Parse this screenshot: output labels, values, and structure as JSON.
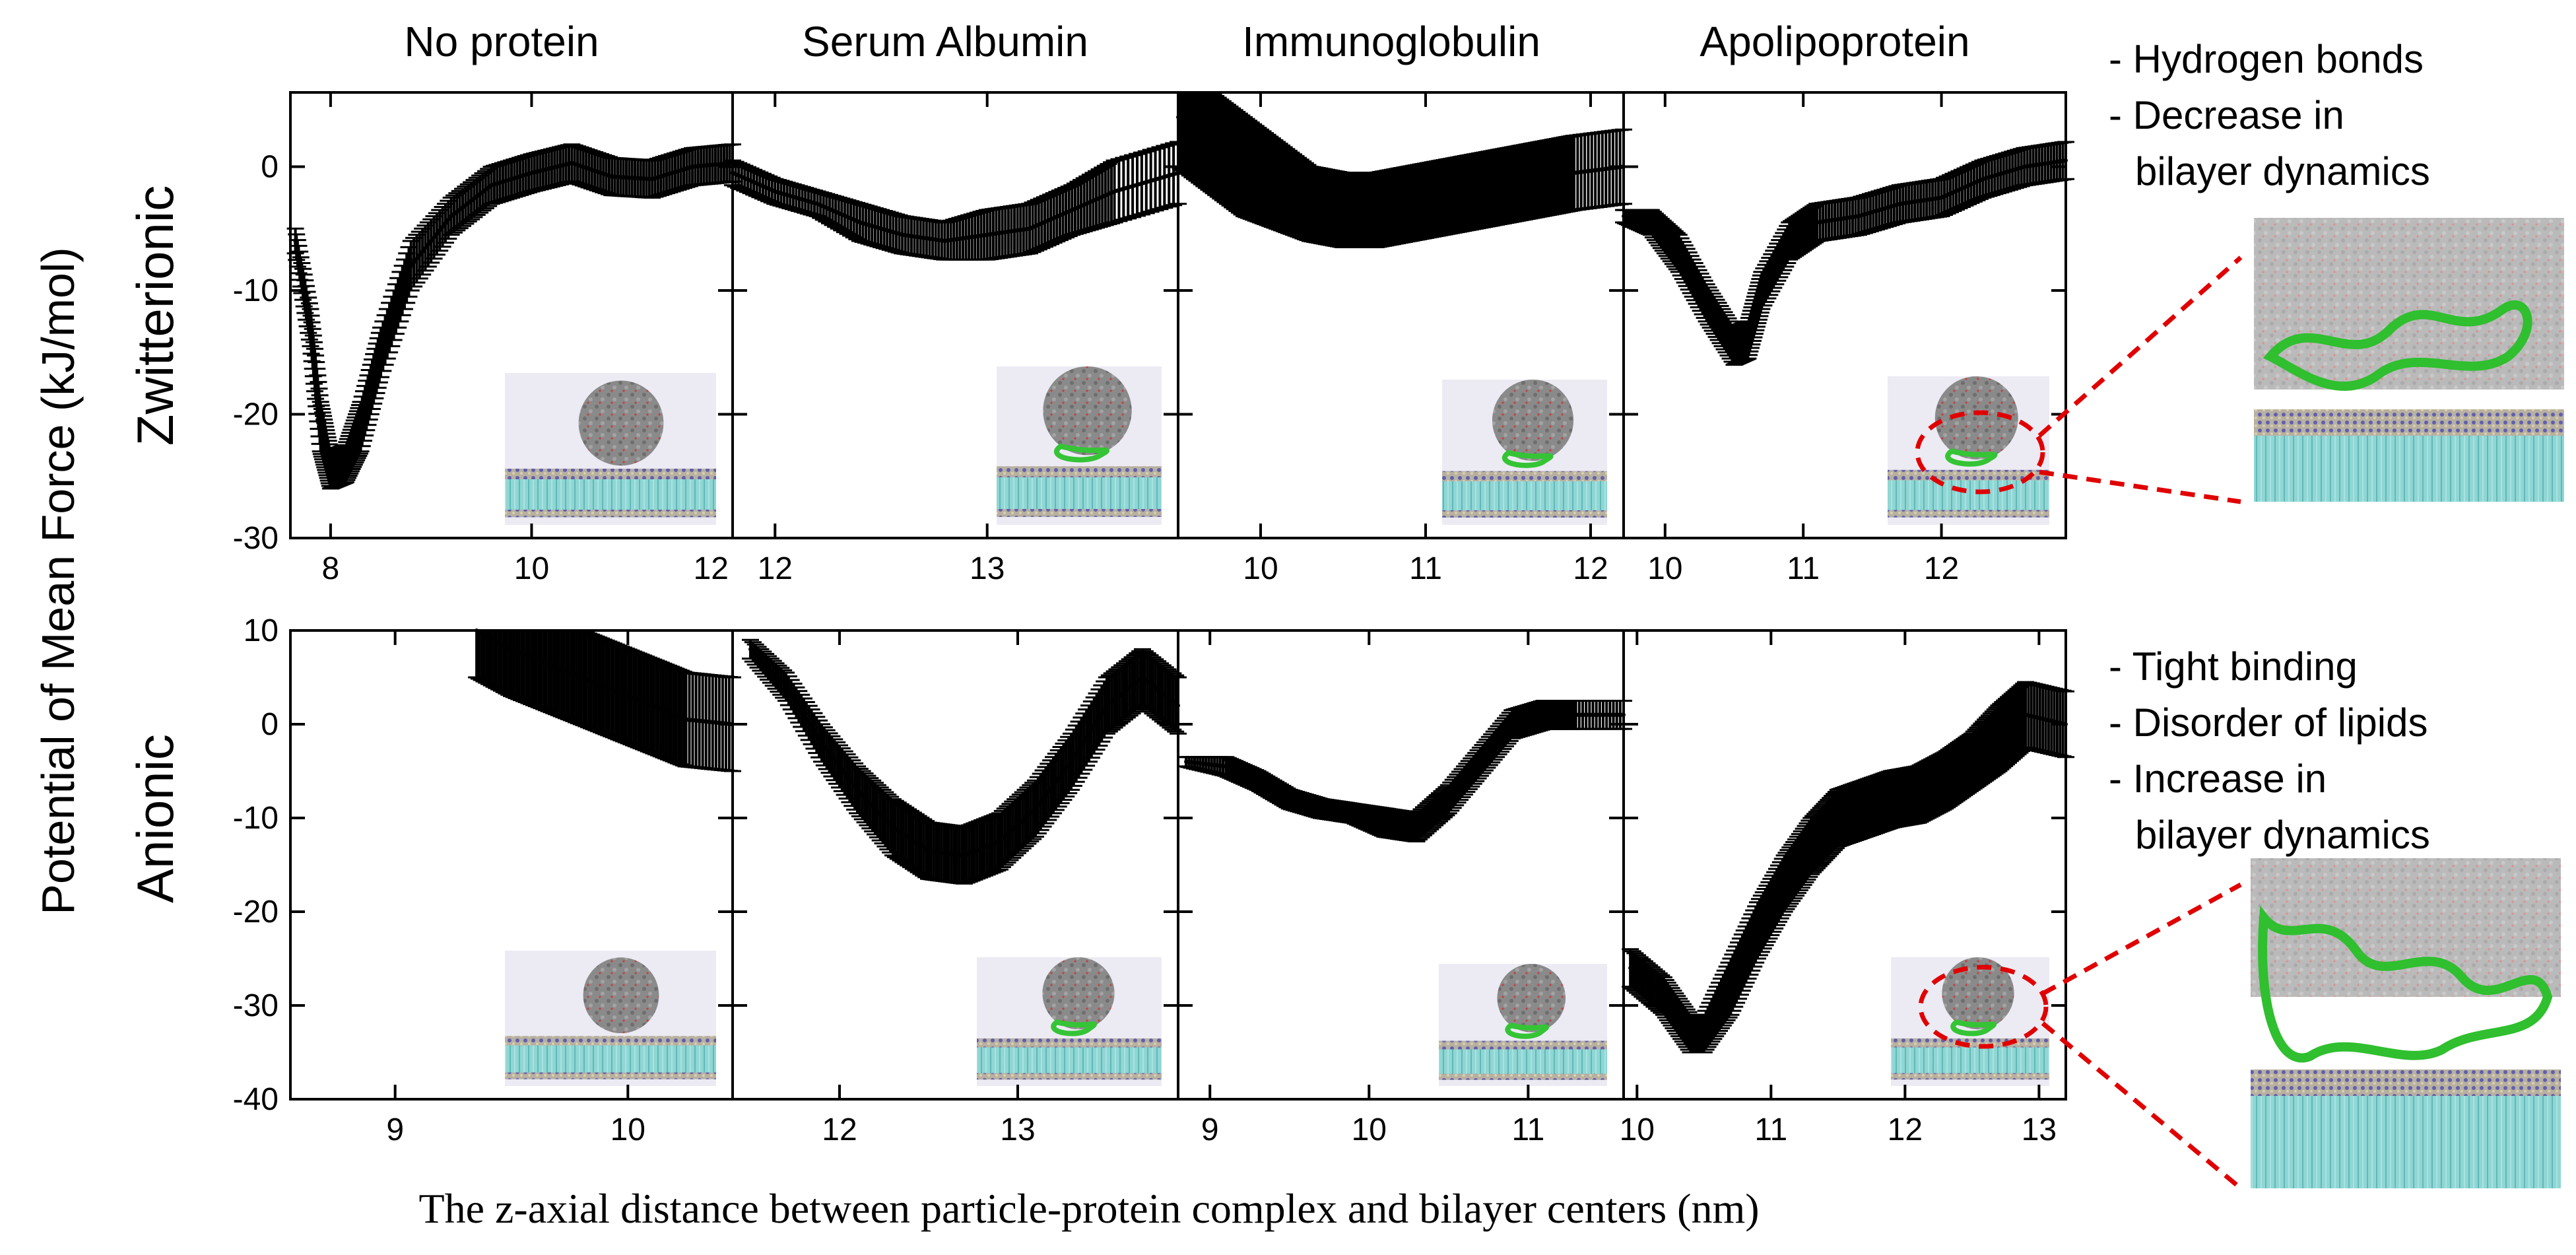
{
  "figure": {
    "ylabel": "Potential of Mean Force (kJ/mol)",
    "xlabel": "The z-axial distance between particle-protein complex and bilayer centers (nm)",
    "column_titles": [
      "No protein",
      "Serum Albumin",
      "Immunoglobulin",
      "Apolipoprotein"
    ],
    "row_labels": [
      "Zwitterionic",
      "Anionic"
    ],
    "annotations_top": [
      "- Hydrogen bonds",
      "- Decrease in",
      "bilayer dynamics"
    ],
    "annotations_bottom": [
      "- Tight binding",
      "- Disorder of lipids",
      "- Increase in",
      "bilayer dynamics"
    ]
  },
  "chart_data": [
    {
      "type": "line",
      "row": "Zwitterionic",
      "column": "No protein",
      "xlim": [
        7.6,
        12.0
      ],
      "ylim": [
        -30,
        6
      ],
      "xticks": [
        8,
        10,
        12
      ],
      "yticks": [
        0,
        -10,
        -20,
        -30
      ],
      "x": [
        7.65,
        7.8,
        7.9,
        8.0,
        8.15,
        8.3,
        8.5,
        8.8,
        9.2,
        9.6,
        10.0,
        10.4,
        10.8,
        11.2,
        11.6,
        12.0
      ],
      "y": [
        -6,
        -13,
        -21,
        -24.5,
        -24,
        -21,
        -15,
        -8,
        -4,
        -1.5,
        -0.5,
        0.3,
        -0.8,
        -1,
        0,
        0.3
      ],
      "err": [
        1,
        1.5,
        2,
        1.5,
        1.5,
        2,
        2,
        2,
        1.5,
        1.5,
        1.5,
        1.5,
        1.5,
        1.5,
        1.5,
        1.5
      ]
    },
    {
      "type": "line",
      "row": "Zwitterionic",
      "column": "Serum Albumin",
      "xlim": [
        11.8,
        13.9
      ],
      "ylim": [
        -30,
        6
      ],
      "xticks": [
        12,
        13
      ],
      "yticks": [
        0,
        -10,
        -20,
        -30
      ],
      "x": [
        11.8,
        12.0,
        12.2,
        12.4,
        12.6,
        12.8,
        13.0,
        13.2,
        13.4,
        13.6,
        13.9
      ],
      "y": [
        -0.5,
        -2,
        -3,
        -4.5,
        -5.5,
        -6,
        -5.5,
        -5,
        -3.5,
        -2,
        -0.5
      ],
      "err": [
        1,
        1,
        1,
        1.5,
        1.5,
        1.5,
        2,
        2,
        2,
        2.5,
        2.5
      ]
    },
    {
      "type": "line",
      "row": "Zwitterionic",
      "column": "Immunoglobulin",
      "xlim": [
        9.5,
        12.2
      ],
      "ylim": [
        -30,
        6
      ],
      "xticks": [
        10,
        11,
        12
      ],
      "yticks": [
        0,
        -10,
        -20,
        -30
      ],
      "x": [
        9.5,
        9.7,
        9.9,
        10.1,
        10.3,
        10.5,
        10.7,
        10.9,
        11.1,
        11.3,
        11.5,
        11.7,
        11.9,
        12.2
      ],
      "y": [
        4,
        2,
        0,
        -1.5,
        -3,
        -3.5,
        -3.5,
        -3,
        -2.5,
        -2,
        -1.5,
        -1,
        -0.5,
        0
      ],
      "err": [
        4,
        4,
        4,
        3.5,
        3,
        3,
        3,
        3,
        3,
        3,
        3,
        3,
        3,
        3
      ]
    },
    {
      "type": "line",
      "row": "Zwitterionic",
      "column": "Apolipoprotein",
      "xlim": [
        9.7,
        12.9
      ],
      "ylim": [
        -30,
        6
      ],
      "xticks": [
        10,
        11,
        12
      ],
      "yticks": [
        0,
        -10,
        -20,
        -30
      ],
      "x": [
        9.7,
        9.9,
        10.1,
        10.3,
        10.5,
        10.6,
        10.7,
        10.9,
        11.1,
        11.4,
        11.7,
        12.0,
        12.3,
        12.6,
        12.9
      ],
      "y": [
        -4,
        -4.5,
        -7,
        -11,
        -14.5,
        -14,
        -10,
        -6,
        -4.5,
        -4,
        -3,
        -2.5,
        -1,
        0,
        0.5
      ],
      "err": [
        0.5,
        1,
        1.5,
        1.5,
        1.5,
        1.5,
        1.5,
        1.5,
        1.5,
        1.5,
        1.5,
        1.5,
        1.5,
        1.5,
        1.5
      ]
    },
    {
      "type": "line",
      "row": "Anionic",
      "column": "No protein",
      "xlim": [
        8.55,
        10.45
      ],
      "ylim": [
        -40,
        10
      ],
      "xticks": [
        9,
        10
      ],
      "yticks": [
        10,
        0,
        -10,
        -20,
        -30,
        -40
      ],
      "x": [
        9.35,
        9.5,
        9.65,
        9.8,
        9.95,
        10.1,
        10.25,
        10.45
      ],
      "y": [
        10,
        8,
        6.5,
        5,
        3.5,
        2,
        0.5,
        0
      ],
      "err": [
        5,
        5,
        5,
        5,
        5,
        5,
        5,
        5
      ]
    },
    {
      "type": "line",
      "row": "Anionic",
      "column": "Serum Albumin",
      "xlim": [
        11.4,
        13.9
      ],
      "ylim": [
        -40,
        10
      ],
      "xticks": [
        12,
        13
      ],
      "yticks": [
        10,
        0,
        -10,
        -20,
        -30,
        -40
      ],
      "x": [
        11.5,
        11.7,
        11.9,
        12.1,
        12.3,
        12.5,
        12.7,
        12.9,
        13.1,
        13.3,
        13.5,
        13.7,
        13.9
      ],
      "y": [
        8,
        4,
        -2,
        -7,
        -11,
        -13.5,
        -14,
        -12.5,
        -9,
        -4,
        2,
        5,
        2
      ],
      "err": [
        1,
        1.5,
        2,
        2.5,
        3,
        3,
        3,
        3,
        3,
        3,
        3,
        3,
        3
      ]
    },
    {
      "type": "line",
      "row": "Anionic",
      "column": "Immunoglobulin",
      "xlim": [
        8.8,
        11.6
      ],
      "ylim": [
        -40,
        10
      ],
      "xticks": [
        9,
        10,
        11
      ],
      "yticks": [
        10,
        0,
        -10,
        -20,
        -30,
        -40
      ],
      "x": [
        8.85,
        9.1,
        9.3,
        9.5,
        9.7,
        9.9,
        10.1,
        10.3,
        10.5,
        10.7,
        10.9,
        11.1,
        11.3,
        11.6
      ],
      "y": [
        -4,
        -4.5,
        -6,
        -8,
        -9,
        -9.5,
        -10.5,
        -11,
        -8,
        -4,
        0,
        1,
        1,
        1
      ],
      "err": [
        0.5,
        1,
        1,
        1,
        1,
        1,
        1.5,
        1.5,
        1.5,
        1.5,
        1.5,
        1.5,
        1.5,
        1.5
      ]
    },
    {
      "type": "line",
      "row": "Anionic",
      "column": "Apolipoprotein",
      "xlim": [
        9.9,
        13.2
      ],
      "ylim": [
        -40,
        10
      ],
      "xticks": [
        10,
        11,
        12,
        13
      ],
      "yticks": [
        10,
        0,
        -10,
        -20,
        -30,
        -40
      ],
      "x": [
        9.95,
        10.2,
        10.4,
        10.5,
        10.7,
        10.9,
        11.1,
        11.3,
        11.5,
        11.7,
        11.9,
        12.1,
        12.3,
        12.5,
        12.7,
        12.9,
        13.2
      ],
      "y": [
        -26,
        -29,
        -33,
        -33,
        -28,
        -22,
        -17,
        -13,
        -10,
        -9,
        -8,
        -7.5,
        -6,
        -4,
        -1.5,
        1,
        0
      ],
      "err": [
        2,
        2,
        2,
        2,
        3,
        3,
        3,
        3,
        3,
        3,
        3,
        3,
        3,
        3,
        3.5,
        3.5,
        3.5
      ]
    }
  ]
}
